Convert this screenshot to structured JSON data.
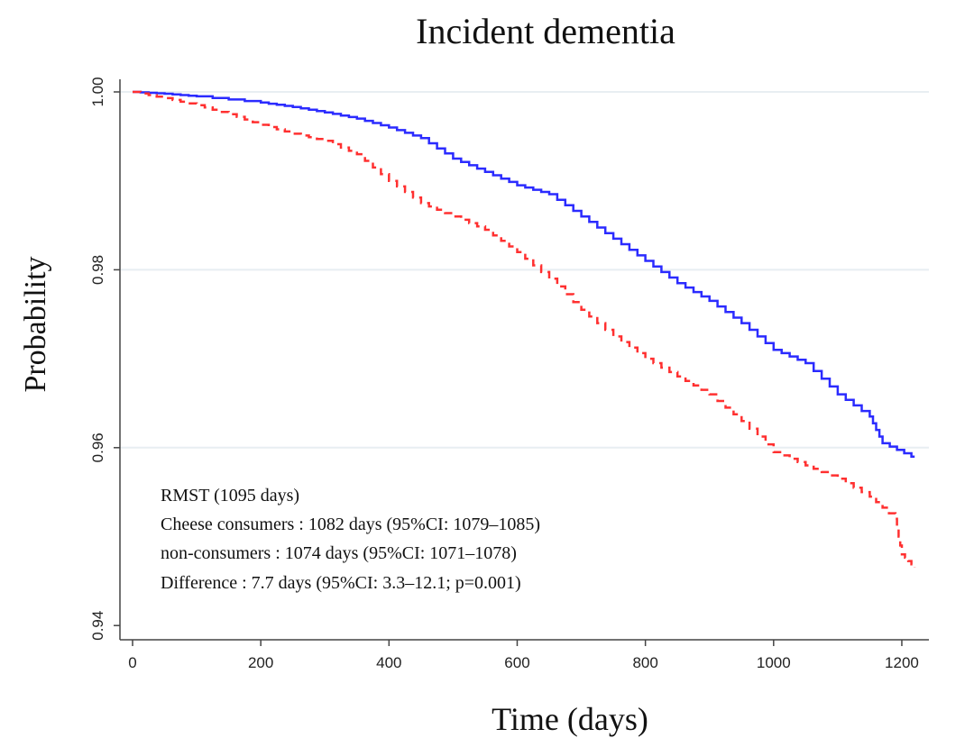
{
  "chart_data": {
    "type": "line",
    "title": "Incident dementia",
    "xlabel": "Time (days)",
    "ylabel": "Probability",
    "xlim": [
      0,
      1230
    ],
    "ylim": [
      0.94,
      1.0
    ],
    "xticks": [
      0,
      200,
      400,
      600,
      800,
      1000,
      1200
    ],
    "xtick_labels": [
      "0",
      "200",
      "400",
      "600",
      "800",
      "1000",
      "1200"
    ],
    "yticks": [
      0.94,
      0.96,
      0.98,
      1.0
    ],
    "ytick_labels": [
      "0.94",
      "0.96",
      "0.98",
      "1.00"
    ],
    "grid": "horizontal",
    "series": [
      {
        "name": "Cheese consumers",
        "color": "#2b2bff",
        "style": "solid",
        "x": [
          0,
          50,
          100,
          200,
          250,
          300,
          350,
          400,
          450,
          500,
          550,
          600,
          650,
          700,
          750,
          800,
          850,
          900,
          950,
          1000,
          1050,
          1100,
          1150,
          1170,
          1215,
          1220
        ],
        "y": [
          1.0,
          0.9998,
          0.9995,
          0.9988,
          0.9983,
          0.9977,
          0.997,
          0.996,
          0.9948,
          0.9925,
          0.991,
          0.9895,
          0.9885,
          0.986,
          0.9835,
          0.981,
          0.9785,
          0.9765,
          0.974,
          0.971,
          0.9695,
          0.966,
          0.9635,
          0.9605,
          0.959,
          0.959
        ]
      },
      {
        "name": "non-consumers",
        "color": "#ff3030",
        "style": "dashed",
        "x": [
          0,
          50,
          100,
          150,
          200,
          250,
          300,
          350,
          400,
          450,
          500,
          550,
          600,
          650,
          700,
          750,
          800,
          850,
          900,
          950,
          1000,
          1050,
          1100,
          1150,
          1190,
          1200,
          1220
        ],
        "y": [
          1.0,
          0.9993,
          0.9985,
          0.9975,
          0.9963,
          0.9953,
          0.9945,
          0.993,
          0.99,
          0.9875,
          0.986,
          0.9845,
          0.982,
          0.979,
          0.9755,
          0.9725,
          0.97,
          0.968,
          0.966,
          0.963,
          0.9595,
          0.958,
          0.9565,
          0.9545,
          0.952,
          0.948,
          0.9465
        ]
      }
    ],
    "annotations": [
      "RMST  (1095 days)",
      "Cheese consumers : 1082 days (95%CI: 1079–1085)",
      "non-consumers : 1074 days (95%CI: 1071–1078)",
      "Difference : 7.7 days (95%CI: 3.3–12.1; p=0.001)"
    ]
  }
}
